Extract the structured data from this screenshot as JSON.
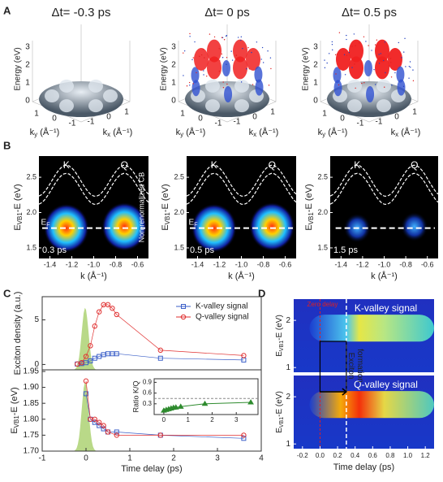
{
  "panel_labels": [
    "A",
    "B",
    "C",
    "D"
  ],
  "panel_a": {
    "titles": [
      "Δt= -0.3 ps",
      "Δt= 0 ps",
      "Δt= 0.5 ps"
    ],
    "z_label": "Energy (eV)",
    "z_ticks": [
      "0",
      "1",
      "2",
      "3"
    ],
    "ky_label": {
      "base": "k",
      "sub": "y",
      "tail": " (Å⁻¹)"
    },
    "kx_label": {
      "base": "k",
      "sub": "x",
      "tail": " (Å⁻¹)"
    },
    "ky_ticks": [
      "1",
      "0",
      "-1"
    ],
    "kx_ticks": [
      "-1",
      "0",
      "1"
    ]
  },
  "panel_b": {
    "times": [
      "0.3 ps",
      "0.5 ps",
      "1.5 ps"
    ],
    "annotation": "Non-renormalized CB",
    "valley_labels": [
      "K",
      "Q"
    ],
    "fermi_label": {
      "base": "E",
      "sub": "F"
    },
    "x_label": "k (Å⁻¹)",
    "y_label": {
      "base": "E",
      "sub": "VB1",
      "tail": "-E (eV)"
    },
    "xlim": [
      -1.5,
      -0.5
    ],
    "xticks": [
      -1.4,
      -1.2,
      {
        "value": -1.0,
        "label": "-1.0"
      },
      -0.8,
      -0.6
    ],
    "ylim": [
      1.35,
      2.8
    ],
    "yticks": [
      1.5,
      {
        "value": 2.0,
        "label": "2.0"
      },
      2.5
    ]
  },
  "chart_data": [
    {
      "type": "line",
      "y_label": "Exciton density (a.u.)",
      "xlim": [
        -1,
        4
      ],
      "ylim": [
        -0.6,
        7.6
      ],
      "yticks": [
        0,
        5
      ],
      "x": [
        -0.2,
        -0.1,
        0,
        0.1,
        0.2,
        0.3,
        0.4,
        0.5,
        0.6,
        0.7,
        1.7,
        3.6
      ],
      "legend": "upper right",
      "series": [
        {
          "name": "K-valley signal",
          "color": "#3b5fc8",
          "marker": "square",
          "values": [
            0.05,
            0.1,
            0.2,
            0.4,
            0.7,
            0.9,
            1.1,
            1.2,
            1.2,
            1.2,
            0.7,
            0.5
          ]
        },
        {
          "name": "Q-valley signal",
          "color": "#e03030",
          "marker": "circle",
          "values": [
            0.05,
            0.2,
            0.9,
            2.1,
            4.3,
            5.9,
            6.7,
            6.7,
            6.3,
            5.6,
            1.6,
            1.0
          ]
        }
      ]
    },
    {
      "type": "line",
      "x_label": "Time delay (ps)",
      "y_label": {
        "base": "E",
        "sub": "VB1",
        "tail": "-E (eV)"
      },
      "xlim": [
        -1,
        4
      ],
      "xticks": [
        -1,
        0,
        1,
        2,
        3,
        4
      ],
      "ylim": [
        1.7,
        1.955
      ],
      "yticks": [
        {
          "value": 1.7,
          "label": "1.70"
        },
        1.75,
        {
          "value": 1.8,
          "label": "1.80"
        },
        1.85,
        {
          "value": 1.9,
          "label": "1.90"
        },
        1.95
      ],
      "x": [
        0,
        0.1,
        0.2,
        0.3,
        0.4,
        0.5,
        0.7,
        1.7,
        3.6
      ],
      "series": [
        {
          "color": "#3b5fc8",
          "marker": "square",
          "values": [
            1.88,
            1.8,
            1.79,
            1.78,
            1.77,
            1.76,
            1.76,
            1.75,
            1.74
          ]
        },
        {
          "color": "#e03030",
          "marker": "circle",
          "values": [
            1.92,
            1.8,
            1.8,
            1.79,
            1.78,
            1.76,
            1.75,
            1.75,
            1.75
          ]
        }
      ]
    },
    {
      "type": "scatter",
      "y_label": "Ratio K/Q",
      "xlim": [
        -0.4,
        3.9
      ],
      "xticks": [
        0,
        1,
        2,
        3
      ],
      "ylim": [
        0,
        1
      ],
      "yticks": [
        0.3,
        0.6,
        0.9
      ],
      "reference_line": 0.45,
      "x": [
        0,
        0.1,
        0.2,
        0.3,
        0.4,
        0.5,
        0.7,
        1.7,
        3.6
      ],
      "values": [
        0.11,
        0.13,
        0.15,
        0.17,
        0.19,
        0.2,
        0.22,
        0.3,
        0.34
      ],
      "color": "#2e8b2e"
    }
  ],
  "panel_d": {
    "top_label": "K-valley signal",
    "bottom_label": "Q-valley signal",
    "zero_label": "Zero delay",
    "formation_label": [
      "Exciton",
      "formation"
    ],
    "x_label": "Time delay (ps)",
    "y_label": {
      "base": "E",
      "sub": "VB1",
      "tail": "-E (eV)"
    },
    "xlim": [
      -0.3,
      1.3
    ],
    "xticks": [
      -0.2,
      {
        "value": 0,
        "label": "0.0"
      },
      0.2,
      0.4,
      0.6,
      0.8,
      {
        "value": 1.0,
        "label": "1.0"
      },
      1.2
    ],
    "ylim": [
      0.9,
      2.45
    ],
    "yticks": [
      1,
      2
    ],
    "zero_delay_line": 0,
    "formation_line": 0.3
  }
}
